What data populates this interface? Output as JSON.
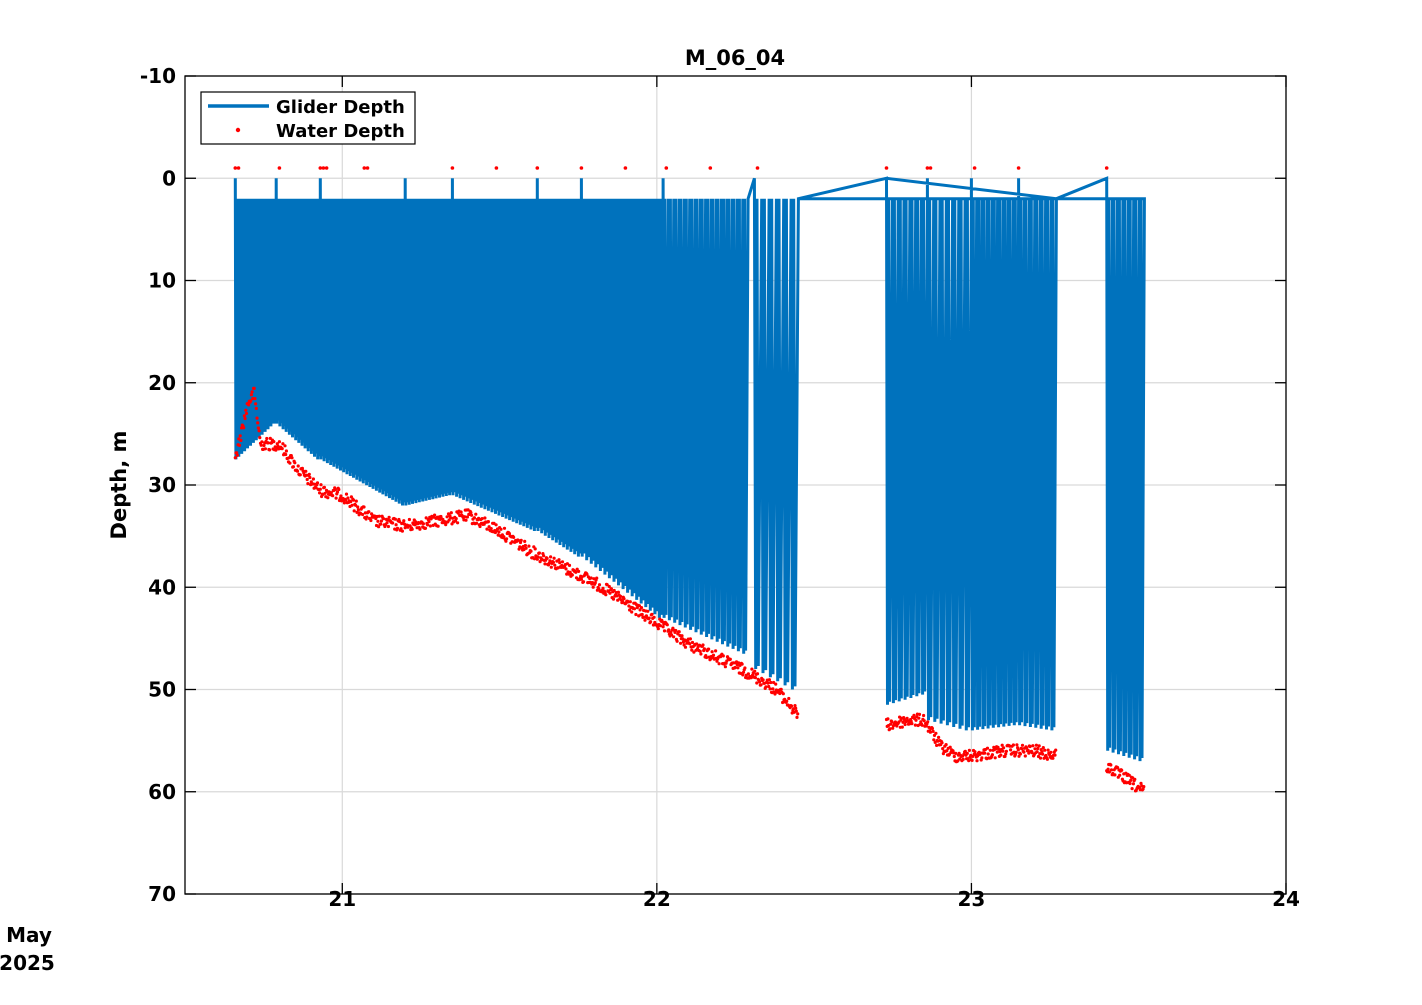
{
  "chart_data": {
    "type": "line",
    "title": "M_06_04",
    "xlabel": "",
    "ylabel": "Depth, m",
    "date_label_line1": "May",
    "date_label_line2": "2025",
    "xlim": [
      20.5,
      24
    ],
    "ylim": [
      -10,
      70
    ],
    "y_reversed": true,
    "grid": true,
    "legend_position": "top-left",
    "x_ticks": [
      21,
      22,
      23,
      24
    ],
    "x_tick_labels": [
      "21",
      "22",
      "23",
      "24"
    ],
    "y_ticks": [
      -10,
      0,
      10,
      20,
      30,
      40,
      50,
      60,
      70
    ],
    "y_tick_labels": [
      "-10",
      "0",
      "10",
      "20",
      "30",
      "40",
      "50",
      "60",
      "70"
    ],
    "series": [
      {
        "name": "Glider Depth",
        "kind": "line",
        "color": "#0072bd",
        "segments": [
          {
            "x_start": 20.66,
            "x_end": 20.79,
            "shallow": 2,
            "deep_start": 27.5,
            "deep_end": 24,
            "n_dives": 14
          },
          {
            "x_start": 20.79,
            "x_end": 20.93,
            "shallow": 2,
            "deep_start": 24,
            "deep_end": 27.5,
            "n_dives": 14
          },
          {
            "x_start": 20.93,
            "x_end": 21.2,
            "shallow": 2,
            "deep_start": 27.5,
            "deep_end": 32,
            "n_dives": 26
          },
          {
            "x_start": 21.2,
            "x_end": 21.35,
            "shallow": 2,
            "deep_start": 32,
            "deep_end": 31,
            "n_dives": 14
          },
          {
            "x_start": 21.35,
            "x_end": 21.62,
            "shallow": 2,
            "deep_start": 31,
            "deep_end": 34.5,
            "n_dives": 24
          },
          {
            "x_start": 21.62,
            "x_end": 21.76,
            "shallow": 2,
            "deep_start": 34.5,
            "deep_end": 37,
            "n_dives": 12
          },
          {
            "x_start": 21.76,
            "x_end": 22.02,
            "shallow": 2,
            "deep_start": 37,
            "deep_end": 43,
            "n_dives": 18
          },
          {
            "x_start": 22.02,
            "x_end": 22.29,
            "shallow": 2,
            "deep_start": 43,
            "deep_end": 46.5,
            "n_dives": 16
          },
          {
            "x_start": 22.31,
            "x_end": 22.45,
            "shallow": 2,
            "deep_start": 48,
            "deep_end": 50,
            "n_dives": 6
          },
          {
            "x_start": 22.73,
            "x_end": 22.86,
            "shallow": 2,
            "deep_start": 51.5,
            "deep_end": 50.5,
            "n_dives": 7
          },
          {
            "x_start": 22.86,
            "x_end": 23.0,
            "shallow": 2,
            "deep_start": 53,
            "deep_end": 54,
            "n_dives": 7
          },
          {
            "x_start": 23.0,
            "x_end": 23.15,
            "shallow": 2,
            "deep_start": 54,
            "deep_end": 53.5,
            "n_dives": 9
          },
          {
            "x_start": 23.15,
            "x_end": 23.27,
            "shallow": 2,
            "deep_start": 53.5,
            "deep_end": 54,
            "n_dives": 7
          },
          {
            "x_start": 23.43,
            "x_end": 23.55,
            "shallow": 2,
            "deep_start": 56,
            "deep_end": 57,
            "n_dives": 7
          }
        ],
        "surface_transits": [
          {
            "x": [
              22.45,
              22.73
            ],
            "y": [
              2,
              0
            ]
          },
          {
            "x": [
              23.27,
              23.43
            ],
            "y": [
              2,
              0
            ]
          }
        ]
      },
      {
        "name": "Water Depth",
        "kind": "scatter",
        "color": "#ff0000",
        "profile_x": [
          20.66,
          20.7,
          20.72,
          20.74,
          20.8,
          20.86,
          20.93,
          21.0,
          21.1,
          21.2,
          21.3,
          21.4,
          21.5,
          21.6,
          21.7,
          21.8,
          21.9,
          22.0,
          22.1,
          22.2,
          22.3,
          22.38,
          22.45
        ],
        "profile_y": [
          27.5,
          22,
          21,
          26,
          26,
          28.5,
          30.5,
          31,
          33.5,
          34,
          33.5,
          33,
          34.5,
          36.5,
          38,
          39.5,
          41.5,
          43.5,
          45.5,
          47,
          48.5,
          50,
          52.5
        ],
        "profile2_x": [
          22.73,
          22.8,
          22.85,
          22.9,
          22.95,
          23.0,
          23.1,
          23.2,
          23.27
        ],
        "profile2_y": [
          53.5,
          53,
          53,
          55.5,
          56.5,
          56.5,
          56,
          56,
          56.5
        ],
        "profile3_x": [
          23.43,
          23.48,
          23.55
        ],
        "profile3_y": [
          57.5,
          58.5,
          60
        ],
        "surface_markers_x": [
          20.66,
          20.67,
          20.8,
          20.93,
          20.94,
          20.95,
          21.07,
          21.08,
          21.35,
          21.49,
          21.62,
          21.76,
          21.9,
          22.03,
          22.17,
          22.32,
          22.73,
          22.86,
          22.87,
          23.01,
          23.15,
          23.43
        ],
        "surface_marker_y": -1
      }
    ]
  }
}
